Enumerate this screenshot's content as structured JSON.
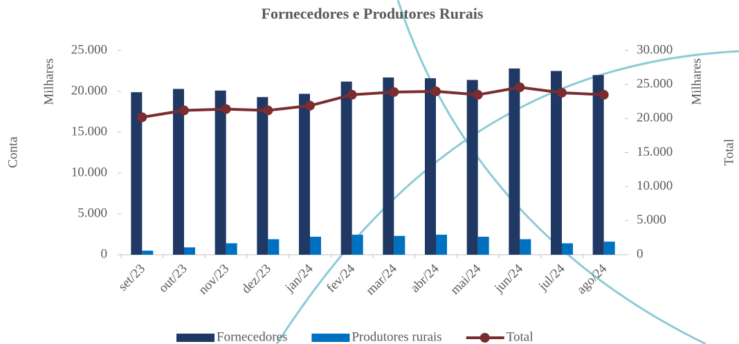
{
  "chart_data": {
    "type": "bar-line",
    "title": "Fornecedores e Produtores Rurais",
    "y_axis_label": "Conta",
    "y2_axis_label": "Total",
    "y_units": "Milhares",
    "y2_units": "Milhares",
    "categories": [
      "set/23",
      "out/23",
      "nov/23",
      "dez/23",
      "jan/24",
      "fev/24",
      "mar/24",
      "abr/24",
      "mai/24",
      "jun/24",
      "jul/24",
      "ago/24"
    ],
    "series": [
      {
        "name": "Fornecedores",
        "type": "bar",
        "color": "#1f3864",
        "values": [
          19900,
          20300,
          20100,
          19300,
          19700,
          21200,
          21700,
          21600,
          21400,
          22800,
          22500,
          22000
        ]
      },
      {
        "name": "Produtores rurais",
        "type": "bar",
        "color": "#0070c0",
        "values": [
          500,
          900,
          1400,
          1900,
          2200,
          2450,
          2300,
          2450,
          2200,
          1900,
          1400,
          1600
        ]
      },
      {
        "name": "Total",
        "type": "line",
        "axis": "y2",
        "color": "#7b2c2f",
        "values": [
          20200,
          21200,
          21400,
          21200,
          21900,
          23500,
          23900,
          24000,
          23500,
          24600,
          23800,
          23500
        ]
      }
    ],
    "ylim": [
      0,
      25000
    ],
    "yticks": [
      0,
      {
        "value": 5000,
        "label": "5.000"
      },
      {
        "value": 10000,
        "label": "10.000"
      },
      {
        "value": 15000,
        "label": "15.000"
      },
      {
        "value": 20000,
        "label": "20.000"
      },
      {
        "value": 25000,
        "label": "25.000"
      }
    ],
    "y2lim": [
      0,
      30000
    ],
    "y2ticks": [
      0,
      {
        "value": 5000,
        "label": "5.000"
      },
      {
        "value": 10000,
        "label": "10.000"
      },
      {
        "value": 15000,
        "label": "15.000"
      },
      {
        "value": 20000,
        "label": "20.000"
      },
      {
        "value": 25000,
        "label": "25.000"
      },
      {
        "value": 30000,
        "label": "30.000"
      }
    ],
    "legend": "bottom"
  }
}
